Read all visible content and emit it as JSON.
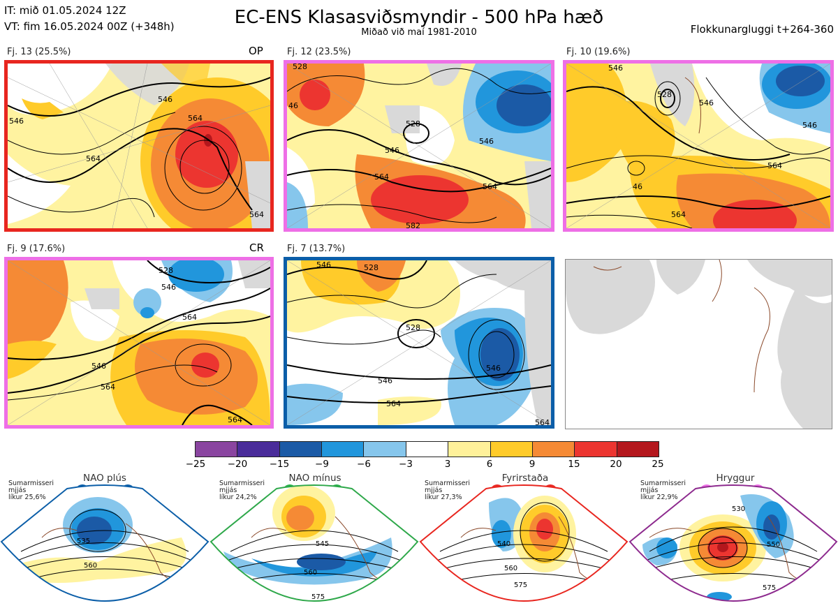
{
  "header": {
    "init_time": "IT: mið 01.05.2024 12Z",
    "valid_time": "VT: fim 16.05.2024 00Z  (+348h)",
    "title": "EC-ENS Klasasviðsmyndir - 500 hPa hæð",
    "subtitle": "Miðað við maí 1981-2010",
    "window": "Flokkunargluggi t+264-360"
  },
  "colors": {
    "op_frame": "#e8261f",
    "cluster_pink": "#ee6fe6",
    "cluster_blue": "#0b5ea8",
    "land": "#d9d9d9",
    "coast": "#8b4a2b"
  },
  "clusters": [
    {
      "label": "Fj. 13 (25.5%)",
      "flag": "OP",
      "frame": "red",
      "contours": [
        "546",
        "564",
        "546",
        "564",
        "564"
      ]
    },
    {
      "label": "Fj. 12 (23.5%)",
      "flag": "",
      "frame": "pink",
      "contours": [
        "528",
        "528",
        "546",
        "564",
        "564",
        "546",
        "582",
        "46"
      ]
    },
    {
      "label": "Fj. 10 (19.6%)",
      "flag": "",
      "frame": "pink",
      "contours": [
        "546",
        "528",
        "546",
        "546",
        "564",
        "46",
        "564"
      ]
    },
    {
      "label": "Fj. 9 (17.6%)",
      "flag": "CR",
      "frame": "pink",
      "contours": [
        "528",
        "546",
        "564",
        "546",
        "564",
        "564"
      ]
    },
    {
      "label": "Fj. 7 (13.7%)",
      "flag": "",
      "frame": "blue",
      "contours": [
        "546",
        "528",
        "528",
        "546",
        "546",
        "564",
        "564"
      ]
    }
  ],
  "colorbar": {
    "labels": [
      "−25",
      "−20",
      "−15",
      "−9",
      "−6",
      "−3",
      "3",
      "6",
      "9",
      "15",
      "20",
      "25"
    ],
    "colors": [
      "#8a45a0",
      "#4a2c9a",
      "#1b5aa6",
      "#2196dc",
      "#86c6ec",
      "#ffffff",
      "#fff19a",
      "#ffcb2a",
      "#f58a35",
      "#ec3530",
      "#b4171d"
    ]
  },
  "regimes": [
    {
      "name": "NAO plús",
      "info": "Sumarmisseri\nmjjás\nlíkur 25,6%",
      "contours": [
        "535",
        "560"
      ],
      "frame": "#0b5ea8",
      "dot": "#0b5ea8"
    },
    {
      "name": "NAO mínus",
      "info": "Sumarmisseri\nmjjás\nlíkur 24,2%",
      "contours": [
        "545",
        "560",
        "575"
      ],
      "frame": "#2ea84a",
      "dot": "#27b04a"
    },
    {
      "name": "Fyrirstaða",
      "info": "Sumarmisseri\nmjjás\nlíkur 27,3%",
      "contours": [
        "540",
        "560",
        "575"
      ],
      "frame": "#e8261f",
      "dot": "#ea2a24"
    },
    {
      "name": "Hryggur",
      "info": "Sumarmisseri\nmjjás\nlíkur 22,9%",
      "contours": [
        "530",
        "550",
        "575"
      ],
      "frame": "#8d2a8e",
      "dot": "#ee6fe6"
    }
  ]
}
